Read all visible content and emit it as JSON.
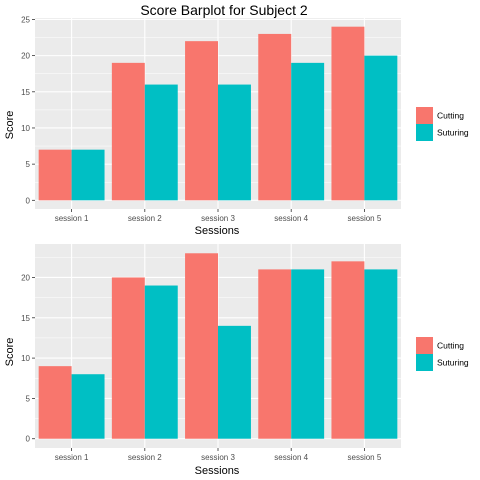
{
  "colors": {
    "cutting": "#F8766D",
    "suturing": "#00BFC4",
    "panel": "#EBEBEB",
    "grid": "#FFFFFF"
  },
  "chart_data": [
    {
      "type": "bar",
      "title": "Score Barplot for Subject  2",
      "xlabel": "Sessions",
      "ylabel": "Score",
      "categories": [
        "session 1",
        "session 2",
        "session 3",
        "session 4",
        "session 5"
      ],
      "series": [
        {
          "name": "Cutting",
          "values": [
            7,
            19,
            22,
            23,
            24
          ]
        },
        {
          "name": "Suturing",
          "values": [
            7,
            16,
            16,
            19,
            20
          ]
        }
      ],
      "yticks": [
        0,
        5,
        10,
        15,
        20,
        25
      ],
      "ylim": [
        -1.2,
        25.2
      ],
      "grid": true,
      "legend": "right"
    },
    {
      "type": "bar",
      "title": "",
      "xlabel": "Sessions",
      "ylabel": "Score",
      "categories": [
        "session 1",
        "session 2",
        "session 3",
        "session 4",
        "session 5"
      ],
      "series": [
        {
          "name": "Cutting",
          "values": [
            9,
            20,
            23,
            21,
            22
          ]
        },
        {
          "name": "Suturing",
          "values": [
            8,
            19,
            14,
            21,
            21
          ]
        }
      ],
      "yticks": [
        0,
        5,
        10,
        15,
        20
      ],
      "ylim": [
        -1.15,
        24.15
      ],
      "grid": true,
      "legend": "right"
    }
  ]
}
